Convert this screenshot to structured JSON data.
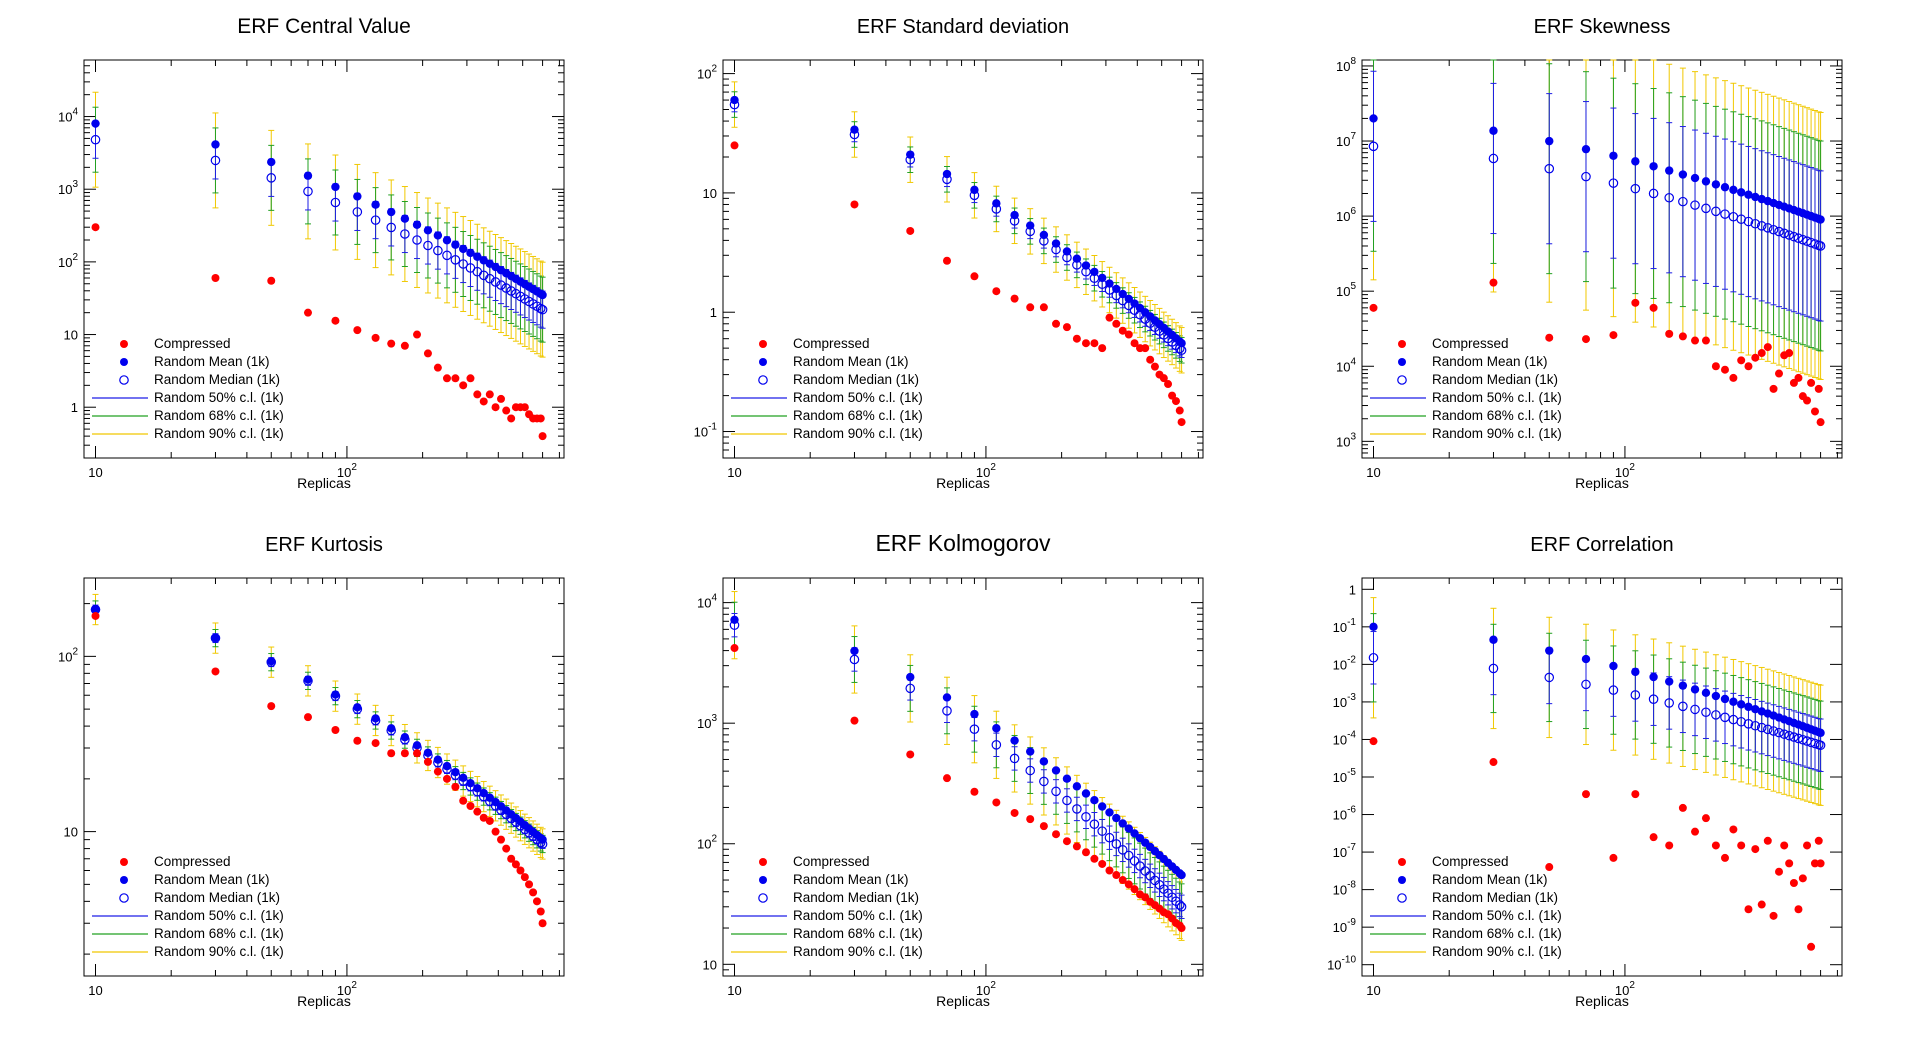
{
  "chart_data": [
    {
      "type": "scatter",
      "title": "ERF Central Value",
      "xlabel": "Replicas",
      "xscale": "log",
      "yscale": "log",
      "xlim": [
        9,
        730
      ],
      "ylim": [
        0.2,
        60000
      ],
      "xticks": [
        {
          "v": 10,
          "label": "10"
        },
        {
          "v": 100,
          "label": "10",
          "sup": "2"
        }
      ],
      "yticks": [
        {
          "v": 1,
          "label": "1"
        },
        {
          "v": 10,
          "label": "10"
        },
        {
          "v": 100,
          "label": "10",
          "sup": "2"
        },
        {
          "v": 1000,
          "label": "10",
          "sup": "3"
        },
        {
          "v": 10000,
          "label": "10",
          "sup": "4"
        }
      ],
      "compressed": [
        [
          10,
          300
        ],
        [
          30,
          60
        ],
        [
          50,
          55
        ],
        [
          70,
          20
        ],
        [
          90,
          15.5
        ],
        [
          110,
          11.5
        ],
        [
          130,
          9
        ],
        [
          150,
          7.5
        ],
        [
          170,
          7
        ],
        [
          190,
          10
        ],
        [
          210,
          5.5
        ],
        [
          230,
          3.5
        ],
        [
          250,
          2.5
        ],
        [
          270,
          2.5
        ],
        [
          290,
          2
        ],
        [
          310,
          2.5
        ],
        [
          330,
          1.5
        ],
        [
          350,
          1.2
        ],
        [
          370,
          1.5
        ],
        [
          390,
          1
        ],
        [
          410,
          1.3
        ],
        [
          430,
          0.9
        ],
        [
          450,
          0.7
        ],
        [
          470,
          1
        ],
        [
          490,
          1
        ],
        [
          510,
          1
        ],
        [
          530,
          0.8
        ],
        [
          550,
          0.7
        ],
        [
          570,
          0.7
        ],
        [
          590,
          0.7
        ],
        [
          600,
          0.4
        ]
      ],
      "mean_start": 8000,
      "mean_end": 35,
      "median_start": 4800,
      "median_end": 22,
      "spread50": 1.8,
      "spread68": 2.8,
      "spread90": 4.5
    },
    {
      "type": "scatter",
      "title": "ERF Standard deviation",
      "xlabel": "Replicas",
      "xscale": "log",
      "yscale": "log",
      "xlim": [
        9,
        730
      ],
      "ylim": [
        0.06,
        130
      ],
      "xticks": [
        {
          "v": 10,
          "label": "10"
        },
        {
          "v": 100,
          "label": "10",
          "sup": "2"
        }
      ],
      "yticks": [
        {
          "v": 0.1,
          "label": "10",
          "sup": "-1"
        },
        {
          "v": 1,
          "label": "1"
        },
        {
          "v": 10,
          "label": "10"
        },
        {
          "v": 100,
          "label": "10",
          "sup": "2"
        }
      ],
      "compressed": [
        [
          10,
          25
        ],
        [
          30,
          8
        ],
        [
          50,
          4.8
        ],
        [
          70,
          2.7
        ],
        [
          90,
          2
        ],
        [
          110,
          1.5
        ],
        [
          130,
          1.3
        ],
        [
          150,
          1.1
        ],
        [
          170,
          1.1
        ],
        [
          190,
          0.8
        ],
        [
          210,
          0.75
        ],
        [
          230,
          0.6
        ],
        [
          250,
          0.55
        ],
        [
          270,
          0.55
        ],
        [
          290,
          0.5
        ],
        [
          310,
          0.9
        ],
        [
          330,
          0.8
        ],
        [
          350,
          0.7
        ],
        [
          370,
          0.65
        ],
        [
          390,
          0.55
        ],
        [
          410,
          0.5
        ],
        [
          430,
          0.5
        ],
        [
          450,
          0.4
        ],
        [
          470,
          0.35
        ],
        [
          490,
          0.3
        ],
        [
          510,
          0.28
        ],
        [
          530,
          0.25
        ],
        [
          550,
          0.2
        ],
        [
          570,
          0.18
        ],
        [
          590,
          0.15
        ],
        [
          600,
          0.12
        ]
      ],
      "mean_start": 60,
      "mean_end": 0.55,
      "median_start": 55,
      "median_end": 0.48,
      "spread50": 1.15,
      "spread68": 1.28,
      "spread90": 1.55
    },
    {
      "type": "scatter",
      "title": "ERF Skewness",
      "xlabel": "Replicas",
      "xscale": "log",
      "yscale": "log",
      "xlim": [
        9,
        730
      ],
      "ylim": [
        600,
        120000000
      ],
      "xticks": [
        {
          "v": 10,
          "label": "10"
        },
        {
          "v": 100,
          "label": "10",
          "sup": "2"
        }
      ],
      "yticks": [
        {
          "v": 1000,
          "label": "10",
          "sup": "3"
        },
        {
          "v": 10000,
          "label": "10",
          "sup": "4"
        },
        {
          "v": 100000,
          "label": "10",
          "sup": "5"
        },
        {
          "v": 1000000,
          "label": "10",
          "sup": "6"
        },
        {
          "v": 10000000,
          "label": "10",
          "sup": "7"
        },
        {
          "v": 100000000,
          "label": "10",
          "sup": "8"
        }
      ],
      "compressed": [
        [
          10,
          60000
        ],
        [
          30,
          130000
        ],
        [
          50,
          24000
        ],
        [
          70,
          23000
        ],
        [
          90,
          26000
        ],
        [
          110,
          70000
        ],
        [
          130,
          60000
        ],
        [
          150,
          27000
        ],
        [
          170,
          25000
        ],
        [
          190,
          22000
        ],
        [
          210,
          22000
        ],
        [
          230,
          10000
        ],
        [
          250,
          9000
        ],
        [
          270,
          7000
        ],
        [
          290,
          12000
        ],
        [
          310,
          10000
        ],
        [
          330,
          13000
        ],
        [
          350,
          15000
        ],
        [
          370,
          18000
        ],
        [
          390,
          5000
        ],
        [
          410,
          8000
        ],
        [
          430,
          14000
        ],
        [
          450,
          15000
        ],
        [
          470,
          6000
        ],
        [
          490,
          7000
        ],
        [
          510,
          4000
        ],
        [
          530,
          3500
        ],
        [
          550,
          6000
        ],
        [
          570,
          2500
        ],
        [
          590,
          5000
        ],
        [
          600,
          1800
        ]
      ],
      "mean_start": 20000000,
      "mean_end": 900000,
      "median_start": 8500000,
      "median_end": 400000,
      "spread50": 10,
      "spread68": 25,
      "spread90": 60
    },
    {
      "type": "scatter",
      "title": "ERF Kurtosis",
      "xlabel": "Replicas",
      "xscale": "log",
      "yscale": "log",
      "xlim": [
        9,
        730
      ],
      "ylim": [
        1.5,
        280
      ],
      "xticks": [
        {
          "v": 10,
          "label": "10"
        },
        {
          "v": 100,
          "label": "10",
          "sup": "2"
        }
      ],
      "yticks": [
        {
          "v": 10,
          "label": "10"
        },
        {
          "v": 100,
          "label": "10",
          "sup": "2"
        }
      ],
      "compressed": [
        [
          10,
          170
        ],
        [
          30,
          82
        ],
        [
          50,
          52
        ],
        [
          70,
          45
        ],
        [
          90,
          38
        ],
        [
          110,
          33
        ],
        [
          130,
          32
        ],
        [
          150,
          28
        ],
        [
          170,
          28
        ],
        [
          190,
          28
        ],
        [
          210,
          25
        ],
        [
          230,
          22
        ],
        [
          250,
          20
        ],
        [
          270,
          18
        ],
        [
          290,
          15
        ],
        [
          310,
          14
        ],
        [
          330,
          13
        ],
        [
          350,
          12
        ],
        [
          370,
          11.5
        ],
        [
          390,
          10
        ],
        [
          410,
          9
        ],
        [
          430,
          8
        ],
        [
          450,
          7
        ],
        [
          470,
          6.5
        ],
        [
          490,
          6
        ],
        [
          510,
          5.5
        ],
        [
          530,
          5
        ],
        [
          550,
          4.5
        ],
        [
          570,
          4
        ],
        [
          590,
          3.5
        ],
        [
          600,
          3
        ]
      ],
      "mean_start": 185,
      "mean_end": 9,
      "median_start": 185,
      "median_end": 8.5,
      "spread50": 1.06,
      "spread68": 1.12,
      "spread90": 1.22
    },
    {
      "type": "scatter",
      "title": "ERF Kolmogorov",
      "xlabel": "Replicas",
      "xscale": "log",
      "yscale": "log",
      "xlim": [
        9,
        730
      ],
      "ylim": [
        8,
        16000
      ],
      "xticks": [
        {
          "v": 10,
          "label": "10"
        },
        {
          "v": 100,
          "label": "10",
          "sup": "2"
        }
      ],
      "yticks": [
        {
          "v": 10,
          "label": "10"
        },
        {
          "v": 100,
          "label": "10",
          "sup": "2"
        },
        {
          "v": 1000,
          "label": "10",
          "sup": "3"
        },
        {
          "v": 10000,
          "label": "10",
          "sup": "4"
        }
      ],
      "compressed": [
        [
          10,
          4200
        ],
        [
          30,
          1050
        ],
        [
          50,
          550
        ],
        [
          70,
          350
        ],
        [
          90,
          270
        ],
        [
          110,
          220
        ],
        [
          130,
          180
        ],
        [
          150,
          160
        ],
        [
          170,
          140
        ],
        [
          190,
          120
        ],
        [
          210,
          105
        ],
        [
          230,
          95
        ],
        [
          250,
          85
        ],
        [
          270,
          75
        ],
        [
          290,
          68
        ],
        [
          310,
          60
        ],
        [
          330,
          55
        ],
        [
          350,
          50
        ],
        [
          370,
          46
        ],
        [
          390,
          42
        ],
        [
          410,
          38
        ],
        [
          430,
          36
        ],
        [
          450,
          33
        ],
        [
          470,
          31
        ],
        [
          490,
          29
        ],
        [
          510,
          27
        ],
        [
          530,
          26
        ],
        [
          550,
          24
        ],
        [
          570,
          22
        ],
        [
          590,
          21
        ],
        [
          600,
          20
        ]
      ],
      "mean_start": 7200,
      "mean_end": 55,
      "median_start": 6500,
      "median_end": 30,
      "spread50": 1.25,
      "spread68": 1.55,
      "spread90": 1.9
    },
    {
      "type": "scatter",
      "title": "ERF Correlation",
      "xlabel": "Replicas",
      "xscale": "log",
      "yscale": "log",
      "xlim": [
        9,
        730
      ],
      "ylim": 5e-11,
      "ylim_max": 2,
      "xticks": [
        {
          "v": 10,
          "label": "10"
        },
        {
          "v": 100,
          "label": "10",
          "sup": "2"
        }
      ],
      "yticks": [
        {
          "v": 1e-10,
          "label": "10",
          "sup": "-10"
        },
        {
          "v": 1e-09,
          "label": "10",
          "sup": "-9"
        },
        {
          "v": 1e-08,
          "label": "10",
          "sup": "-8"
        },
        {
          "v": 1e-07,
          "label": "10",
          "sup": "-7"
        },
        {
          "v": 1e-06,
          "label": "10",
          "sup": "-6"
        },
        {
          "v": 1e-05,
          "label": "10",
          "sup": "-5"
        },
        {
          "v": 0.0001,
          "label": "10",
          "sup": "-4"
        },
        {
          "v": 0.001,
          "label": "10",
          "sup": "-3"
        },
        {
          "v": 0.01,
          "label": "10",
          "sup": "-2"
        },
        {
          "v": 0.1,
          "label": "10",
          "sup": "-1"
        },
        {
          "v": 1,
          "label": "1"
        }
      ],
      "compressed": [
        [
          10,
          9e-05
        ],
        [
          30,
          2.5e-05
        ],
        [
          50,
          4e-08
        ],
        [
          70,
          3.5e-06
        ],
        [
          90,
          7e-08
        ],
        [
          110,
          3.5e-06
        ],
        [
          130,
          2.5e-07
        ],
        [
          150,
          1.5e-07
        ],
        [
          170,
          1.5e-06
        ],
        [
          190,
          3.5e-07
        ],
        [
          210,
          8e-07
        ],
        [
          230,
          1.5e-07
        ],
        [
          250,
          7e-08
        ],
        [
          270,
          4e-07
        ],
        [
          290,
          1.5e-07
        ],
        [
          310,
          3e-09
        ],
        [
          330,
          1.2e-07
        ],
        [
          350,
          4e-09
        ],
        [
          370,
          2e-07
        ],
        [
          390,
          2e-09
        ],
        [
          410,
          3e-08
        ],
        [
          430,
          1.5e-07
        ],
        [
          450,
          5e-08
        ],
        [
          470,
          1.5e-08
        ],
        [
          490,
          3e-09
        ],
        [
          510,
          2e-08
        ],
        [
          530,
          1.5e-07
        ],
        [
          550,
          3e-10
        ],
        [
          570,
          5e-08
        ],
        [
          590,
          2e-07
        ],
        [
          600,
          5e-08
        ]
      ],
      "mean_start": 0.1,
      "mean_end": 0.00015,
      "median_start": 0.015,
      "median_end": 7e-05,
      "spread50": 5,
      "spread68": 15,
      "spread90": 40
    }
  ],
  "legend": {
    "compressed": "Compressed",
    "mean": "Random Mean (1k)",
    "median": "Random Median (1k)",
    "cl50": "Random 50% c.l. (1k)",
    "cl68": "Random 68% c.l. (1k)",
    "cl90": "Random 90% c.l. (1k)"
  },
  "colors": {
    "compressed": "#ff0000",
    "mean": "#0000ee",
    "median": "#0000ee",
    "cl50": "#1e1ee6",
    "cl68": "#22a022",
    "cl90": "#f0c800"
  }
}
